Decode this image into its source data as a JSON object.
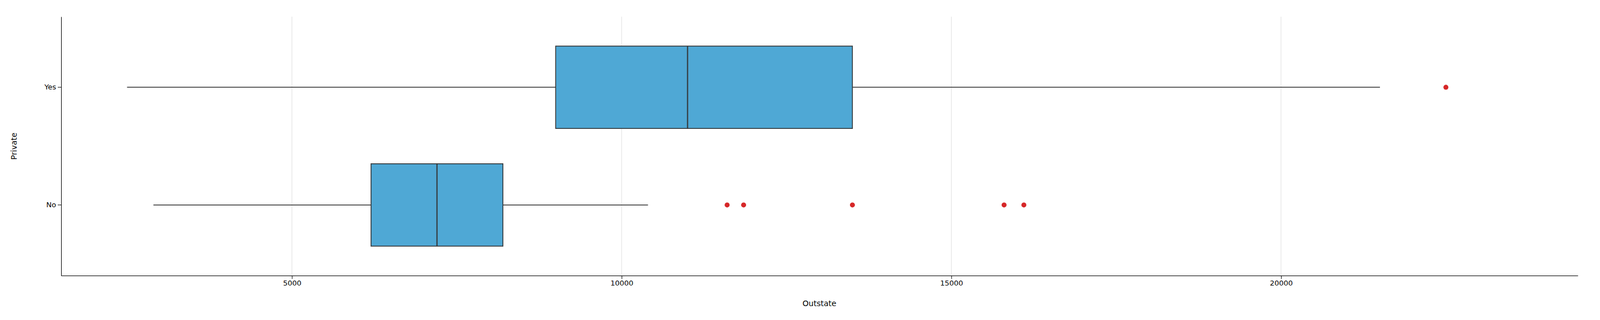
{
  "chart_data": {
    "type": "box",
    "orientation": "horizontal",
    "xlabel": "Outstate",
    "ylabel": "Private",
    "categories": [
      "Yes",
      "No"
    ],
    "q1": [
      9000,
      6200
    ],
    "median": [
      11000,
      7200
    ],
    "q3": [
      13500,
      8200
    ],
    "whisker_low": [
      2500,
      2900
    ],
    "whisker_high": [
      21500,
      10400
    ],
    "outliers": [
      [
        22500
      ],
      [
        11600,
        11850,
        13500,
        15800,
        16100
      ]
    ],
    "color": "#4FA8D5",
    "xlim": [
      1500,
      24500
    ],
    "xticks": [
      5000,
      10000,
      15000,
      20000
    ],
    "grid": true
  }
}
